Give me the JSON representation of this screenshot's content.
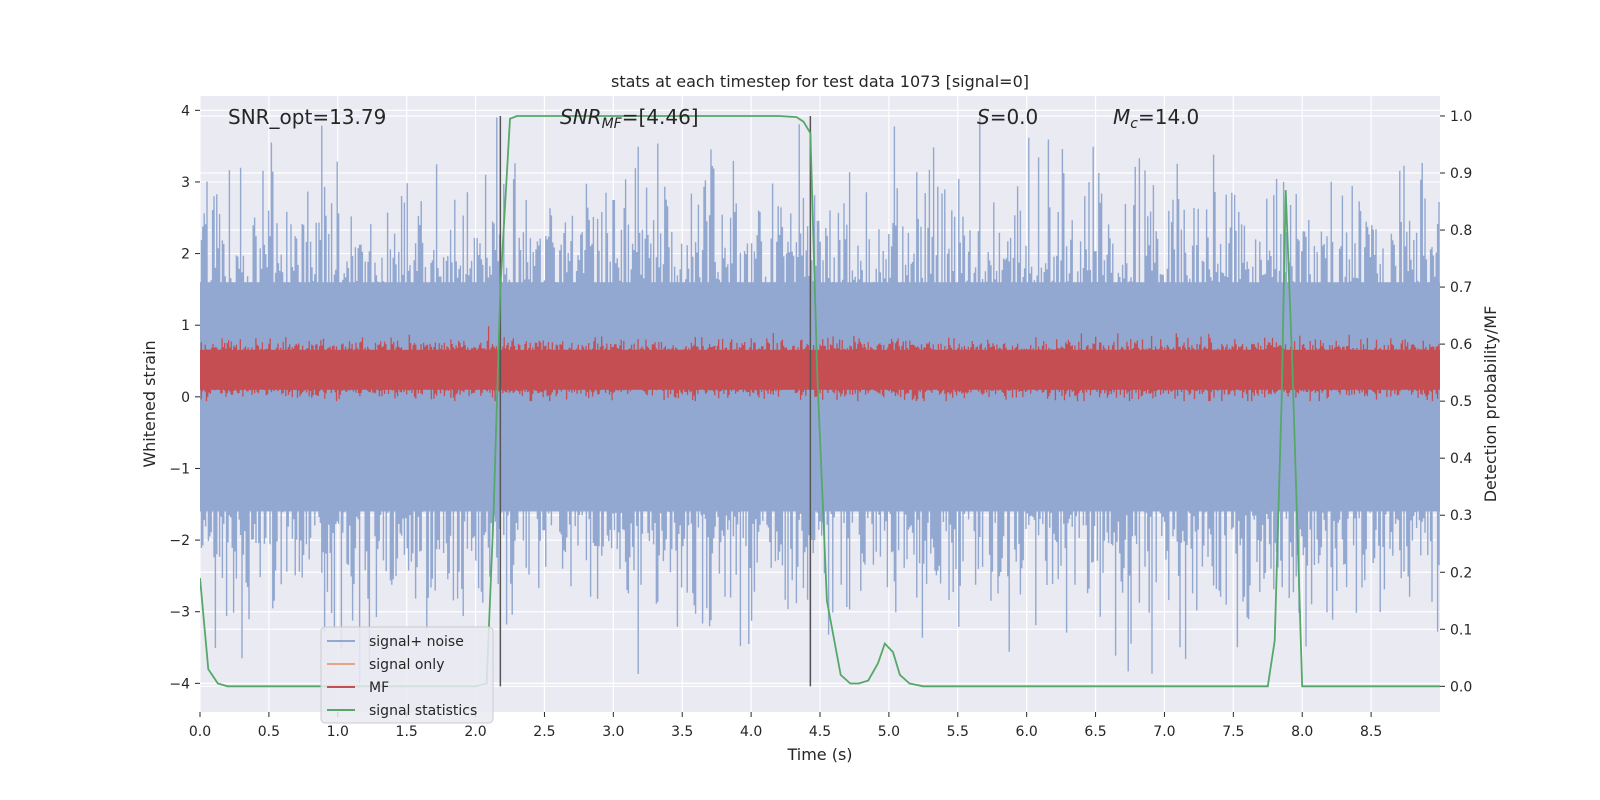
{
  "chart_data": {
    "type": "line",
    "title": "stats at each timestep for test data 1073 [signal=0]",
    "xlabel": "Time (s)",
    "ylabel": "Whitened strain",
    "ylabel_right": "Detection probability/MF",
    "xlim": [
      0.0,
      9.0
    ],
    "ylim": [
      -4.4,
      4.2
    ],
    "ylim_right": [
      -0.045,
      1.035
    ],
    "x_ticks": [
      "0.0",
      "0.5",
      "1.0",
      "1.5",
      "2.0",
      "2.5",
      "3.0",
      "3.5",
      "4.0",
      "4.5",
      "5.0",
      "5.5",
      "6.0",
      "6.5",
      "7.0",
      "7.5",
      "8.0",
      "8.5"
    ],
    "y_ticks": [
      "−4",
      "−3",
      "−2",
      "−1",
      "0",
      "1",
      "2",
      "3",
      "4"
    ],
    "y_ticks_right": [
      "0.0",
      "0.1",
      "0.2",
      "0.3",
      "0.4",
      "0.5",
      "0.6",
      "0.7",
      "0.8",
      "0.9",
      "1.0"
    ],
    "grid": true,
    "legend_position": "lower-left",
    "annotations": [
      {
        "prefix": "SNR_opt",
        "sub": "",
        "value": "=13.79",
        "italic": false
      },
      {
        "prefix": "SNR",
        "sub": "MF",
        "value": "=[4.46]",
        "italic": true
      },
      {
        "prefix": "S",
        "sub": "",
        "value": "=0.0",
        "italic": true
      },
      {
        "prefix": "M",
        "sub": "c",
        "value": "=14.0",
        "italic": true
      }
    ],
    "vlines_x": [
      2.18,
      4.43
    ],
    "series": [
      {
        "name": "signal+ noise",
        "color": "#92a8d1",
        "band": [
          -1.6,
          1.6
        ],
        "peak_range": [
          -4.0,
          3.8
        ]
      },
      {
        "name": "signal only",
        "color": "#e9a385",
        "values": []
      },
      {
        "name": "MF",
        "color": "#c44e52",
        "band_right": [
          0.52,
          0.59
        ],
        "peak_range_right": [
          0.5,
          0.64
        ]
      },
      {
        "name": "signal statistics",
        "color": "#55a868",
        "x": [
          0.0,
          0.06,
          0.13,
          0.2,
          0.5,
          1.0,
          1.5,
          2.0,
          2.08,
          2.13,
          2.18,
          2.25,
          2.3,
          2.6,
          3.0,
          3.5,
          4.0,
          4.2,
          4.33,
          4.38,
          4.43,
          4.48,
          4.55,
          4.65,
          4.72,
          4.78,
          4.85,
          4.92,
          4.97,
          5.03,
          5.08,
          5.15,
          5.25,
          5.5,
          6.0,
          7.0,
          7.5,
          7.75,
          7.8,
          7.85,
          7.88,
          7.93,
          8.0,
          8.5,
          9.0
        ],
        "y": [
          0.19,
          0.03,
          0.005,
          0.0,
          0.0,
          0.0,
          0.0,
          0.0,
          0.005,
          0.3,
          0.7,
          0.995,
          1.0,
          1.0,
          1.0,
          1.0,
          1.0,
          1.0,
          0.998,
          0.99,
          0.97,
          0.55,
          0.15,
          0.02,
          0.005,
          0.005,
          0.01,
          0.04,
          0.075,
          0.06,
          0.02,
          0.005,
          0.0,
          0.0,
          0.0,
          0.0,
          0.0,
          0.0,
          0.08,
          0.5,
          0.87,
          0.55,
          0.0,
          0.0,
          0.0
        ]
      }
    ]
  }
}
